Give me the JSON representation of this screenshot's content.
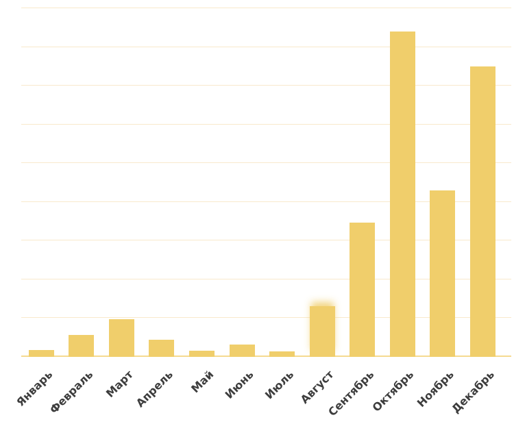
{
  "chart_data": {
    "type": "bar",
    "title": "",
    "xlabel": "",
    "ylabel": "",
    "categories": [
      "Январь",
      "Февраль",
      "Март",
      "Апрель",
      "Май",
      "Июнь",
      "Июль",
      "Август",
      "Сентябрь",
      "Октябрь",
      "Ноябрь",
      "Декабрь"
    ],
    "values": [
      1.8,
      5.6,
      9.8,
      4.5,
      1.6,
      3.2,
      1.4,
      13.0,
      34.6,
      84.0,
      43.0,
      74.9
    ],
    "ylim": [
      0,
      90
    ],
    "gridline_step": 10,
    "grid": "horizontal-only",
    "y_tick_labels": "none",
    "legend": "none",
    "x_label_rotation_deg": -45,
    "blurred_top_bar": "Август",
    "colors": {
      "bar": "#F0CE6B",
      "gridline": "#F9E9CC",
      "baseline": "#F5DA90",
      "axis_label_text": "#3D3D3D",
      "background": "#FFFFFF"
    }
  }
}
